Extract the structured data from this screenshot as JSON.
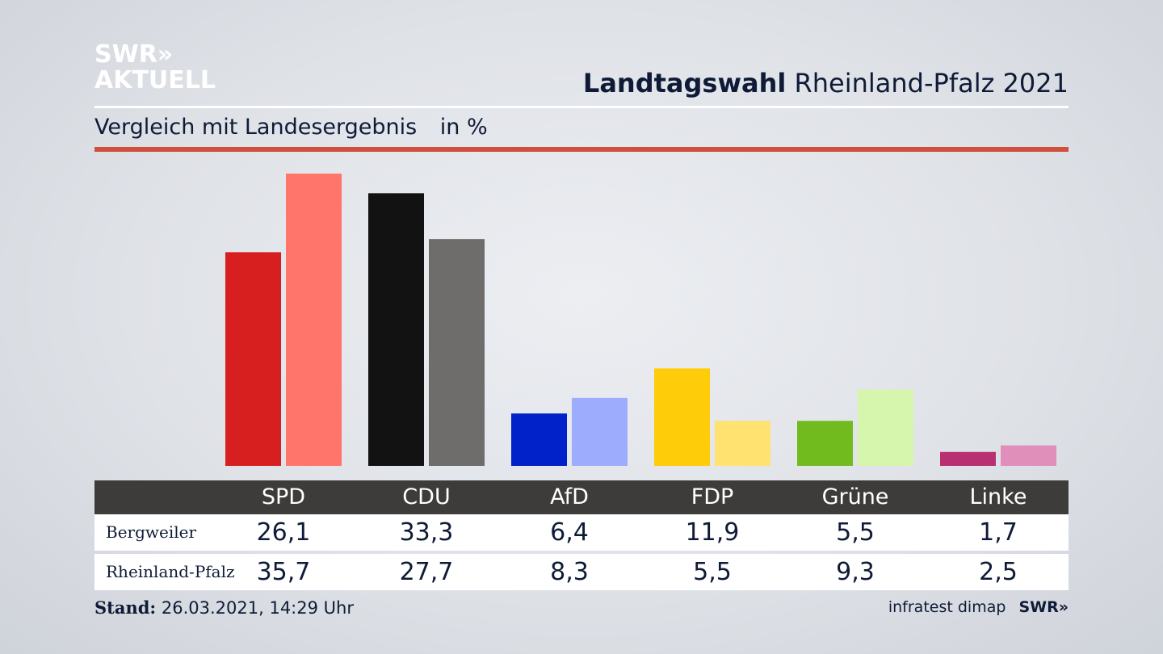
{
  "header": {
    "logo_line1": "SWR»",
    "logo_line2": "AKTUELL",
    "title_bold": "Landtagswahl",
    "title_rest": "Rheinland-Pfalz 2021",
    "subtitle": "Vergleich mit Landesergebnis",
    "unit": "in %"
  },
  "chart_data": {
    "type": "bar",
    "categories": [
      "SPD",
      "CDU",
      "AfD",
      "FDP",
      "Grüne",
      "Linke"
    ],
    "series": [
      {
        "name": "Bergweiler",
        "values": [
          26.1,
          33.3,
          6.4,
          11.9,
          5.5,
          1.7
        ]
      },
      {
        "name": "Rheinland-Pfalz",
        "values": [
          35.7,
          27.7,
          8.3,
          5.5,
          9.3,
          2.5
        ]
      }
    ],
    "value_labels": {
      "Bergweiler": [
        "26,1",
        "33,3",
        "6,4",
        "11,9",
        "5,5",
        "1,7"
      ],
      "Rheinland-Pfalz": [
        "35,7",
        "27,7",
        "8,3",
        "5,5",
        "9,3",
        "2,5"
      ]
    },
    "colors": {
      "Bergweiler": [
        "#d71f20",
        "#121212",
        "#0022c8",
        "#ffcc0a",
        "#72bb1e",
        "#b8306f"
      ],
      "Rheinland-Pfalz": [
        "#ff756b",
        "#6e6d6b",
        "#9dacfd",
        "#ffe26f",
        "#d6f5ad",
        "#e08fba"
      ]
    },
    "ylim": [
      0,
      35.7
    ],
    "grid": false,
    "legend": "table-below"
  },
  "footer": {
    "stand_label": "Stand:",
    "stand_value": "26.03.2021, 14:29 Uhr",
    "source": "infratest dimap",
    "brand": "SWR»"
  }
}
